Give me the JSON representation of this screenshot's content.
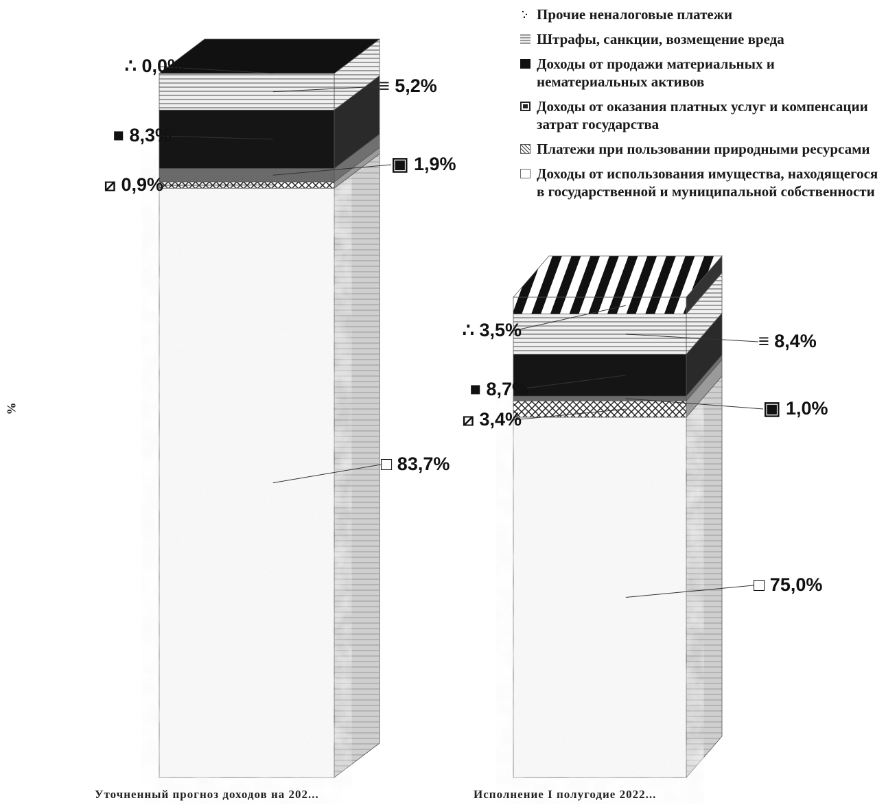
{
  "chart_data": {
    "type": "bar",
    "stacked": true,
    "three_d": true,
    "ylabel": "%",
    "categories": [
      "Уточненный прогноз доходов на 202...",
      "Исполнение I полугодие 2022..."
    ],
    "series": [
      {
        "name": "Доходы от использования имущества, находящегося в государственной и муниципальной собственности",
        "values": [
          83.7,
          75.0
        ],
        "labels": [
          "83,7%",
          "75,0%"
        ]
      },
      {
        "name": "Платежи при пользовании природными ресурсами",
        "values": [
          0.9,
          3.4
        ],
        "labels": [
          "0,9%",
          "3,4%"
        ]
      },
      {
        "name": "Доходы от оказания платных услуг и компенсации затрат государства",
        "values": [
          1.9,
          1.0
        ],
        "labels": [
          "1,9%",
          "1,0%"
        ]
      },
      {
        "name": "Доходы от продажи материальных и нематериальных активов",
        "values": [
          8.3,
          8.7
        ],
        "labels": [
          "8,3%",
          "8,7%"
        ]
      },
      {
        "name": "Штрафы, санкции, возмещение вреда",
        "values": [
          5.2,
          8.4
        ],
        "labels": [
          "5,2%",
          "8,4%"
        ]
      },
      {
        "name": "Прочие неналоговые платежи",
        "values": [
          0.0,
          3.5
        ],
        "labels": [
          "0,0%",
          "3,5%"
        ]
      }
    ],
    "legend": {
      "position": "top-right",
      "items": [
        "Прочие неналоговые платежи",
        "Штрафы, санкции, возмещение вреда",
        "Доходы от продажи материальных и нематериальных активов",
        "Доходы от оказания платных услуг и компенсации затрат государства",
        "Платежи при пользовании природными ресурсами",
        "Доходы от использования имущества, находящегося в государственной и муниципальной собственности"
      ]
    },
    "colors": [
      "#f4f4f4",
      "#8a8a8a",
      "#6e6e6e",
      "#151515",
      "#dcdcdc",
      "#1c1c1c"
    ]
  }
}
